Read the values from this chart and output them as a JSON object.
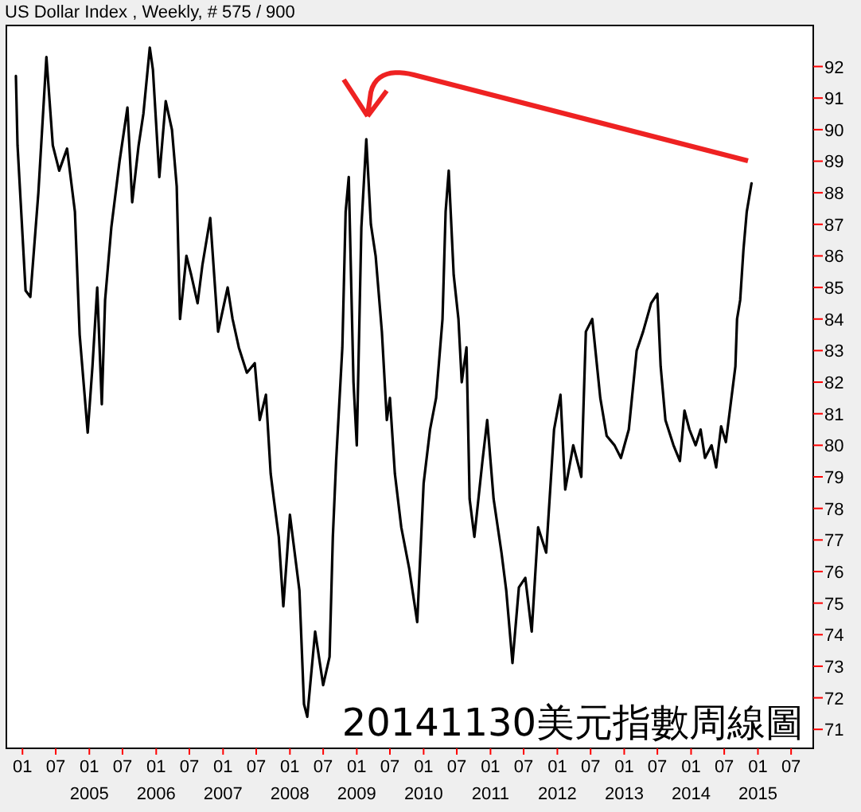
{
  "chart_data": {
    "type": "line",
    "title": "US Dollar Index , Weekly, # 575 / 900",
    "annotations": [
      "20141130美元指數周線圖"
    ],
    "color": "#000000",
    "x": [
      "2003-11-26",
      "2003-12-05",
      "2004-01-18",
      "2004-02-13",
      "2004-03-28",
      "2004-05-11",
      "2004-06-15",
      "2004-07-20",
      "2004-09-01",
      "2004-10-14",
      "2004-11-09",
      "2004-12-23",
      "2005-01-18",
      "2005-02-13",
      "2005-03-10",
      "2005-03-28",
      "2005-05-01",
      "2005-06-15",
      "2005-07-28",
      "2005-08-23",
      "2005-09-27",
      "2005-10-23",
      "2005-11-27",
      "2005-12-14",
      "2006-01-18",
      "2006-02-22",
      "2006-03-28",
      "2006-04-23",
      "2006-05-11",
      "2006-06-15",
      "2006-07-11",
      "2006-08-15",
      "2006-09-10",
      "2006-10-23",
      "2006-12-05",
      "2007-01-26",
      "2007-02-22",
      "2007-03-28",
      "2007-05-11",
      "2007-06-23",
      "2007-07-20",
      "2007-08-23",
      "2007-09-18",
      "2007-10-05",
      "2007-11-01",
      "2007-11-26",
      "2008-01-01",
      "2008-01-27",
      "2008-02-22",
      "2008-03-18",
      "2008-04-05",
      "2008-05-18",
      "2008-07-01",
      "2008-08-05",
      "2008-08-23",
      "2008-09-10",
      "2008-10-14",
      "2008-11-01",
      "2008-11-18",
      "2008-12-14",
      "2009-01-01",
      "2009-01-26",
      "2009-02-22",
      "2009-03-19",
      "2009-04-14",
      "2009-05-18",
      "2009-06-14",
      "2009-07-01",
      "2009-07-28",
      "2009-09-01",
      "2009-10-14",
      "2009-11-27",
      "2010-01-01",
      "2010-02-05",
      "2010-03-10",
      "2010-04-14",
      "2010-05-01",
      "2010-05-18",
      "2010-06-14",
      "2010-07-10",
      "2010-07-28",
      "2010-08-23",
      "2010-09-09",
      "2010-10-05",
      "2010-11-18",
      "2010-12-14",
      "2011-01-18",
      "2011-03-02",
      "2011-03-28",
      "2011-05-01",
      "2011-06-05",
      "2011-07-10",
      "2011-08-14",
      "2011-09-18",
      "2011-11-01",
      "2011-12-14",
      "2012-01-18",
      "2012-02-13",
      "2012-03-28",
      "2012-05-11",
      "2012-06-05",
      "2012-07-10",
      "2012-08-23",
      "2012-09-27",
      "2012-11-09",
      "2012-12-14",
      "2013-01-26",
      "2013-03-10",
      "2013-04-14",
      "2013-05-28",
      "2013-07-01",
      "2013-07-19",
      "2013-08-14",
      "2013-09-27",
      "2013-11-01",
      "2013-11-26",
      "2013-12-23",
      "2014-01-26",
      "2014-02-22",
      "2014-03-18",
      "2014-04-23",
      "2014-05-18",
      "2014-06-14",
      "2014-07-10",
      "2014-08-05",
      "2014-08-31",
      "2014-09-09",
      "2014-09-26",
      "2014-10-14",
      "2014-11-01",
      "2014-11-27"
    ],
    "values": [
      91.7,
      89.5,
      84.9,
      84.7,
      88.0,
      92.3,
      89.5,
      88.7,
      89.4,
      87.4,
      83.5,
      80.4,
      82.5,
      85.0,
      81.3,
      84.6,
      86.9,
      89.0,
      90.7,
      87.7,
      89.5,
      90.5,
      92.6,
      91.9,
      88.5,
      90.9,
      90.0,
      88.2,
      84.0,
      86.0,
      85.4,
      84.5,
      85.7,
      87.2,
      83.6,
      85.0,
      84.0,
      83.1,
      82.3,
      82.6,
      80.8,
      81.6,
      79.1,
      78.3,
      77.1,
      74.9,
      77.8,
      76.6,
      75.4,
      71.8,
      71.4,
      74.1,
      72.4,
      73.3,
      77.1,
      79.5,
      83.1,
      87.4,
      88.5,
      82.0,
      80.0,
      86.9,
      89.7,
      87.0,
      86.0,
      83.6,
      80.8,
      81.5,
      79.1,
      77.4,
      76.1,
      74.4,
      78.8,
      80.5,
      81.5,
      84.0,
      87.4,
      88.7,
      85.4,
      84.0,
      82.0,
      83.1,
      78.3,
      77.1,
      79.5,
      80.8,
      78.3,
      76.6,
      75.4,
      73.1,
      75.5,
      75.8,
      74.1,
      77.4,
      76.6,
      80.5,
      81.6,
      78.6,
      80.0,
      79.0,
      83.6,
      84.0,
      81.5,
      80.3,
      80.0,
      79.6,
      80.5,
      83.0,
      83.6,
      84.5,
      84.8,
      82.5,
      80.8,
      80.0,
      79.5,
      81.1,
      80.5,
      80.0,
      80.5,
      79.6,
      80.0,
      79.3,
      80.6,
      80.1,
      81.3,
      82.5,
      84.0,
      84.6,
      86.2,
      87.4,
      88.3
    ],
    "xlim": [
      "2003-10-05",
      "2015-10-30"
    ],
    "ylim": [
      70.4,
      93.3
    ],
    "xticks": [
      {
        "value": "2004-01",
        "label": "01"
      },
      {
        "value": "2004-07",
        "label": "07"
      },
      {
        "value": "2005-01",
        "label": "01\n2005"
      },
      {
        "value": "2005-07",
        "label": "07"
      },
      {
        "value": "2006-01",
        "label": "01\n2006"
      },
      {
        "value": "2006-07",
        "label": "07"
      },
      {
        "value": "2007-01",
        "label": "01\n2007"
      },
      {
        "value": "2007-07",
        "label": "07"
      },
      {
        "value": "2008-01",
        "label": "01\n2008"
      },
      {
        "value": "2008-07",
        "label": "07"
      },
      {
        "value": "2009-01",
        "label": "01\n2009"
      },
      {
        "value": "2009-07",
        "label": "07"
      },
      {
        "value": "2010-01",
        "label": "01\n2010"
      },
      {
        "value": "2010-07",
        "label": "07"
      },
      {
        "value": "2011-01",
        "label": "01\n2011"
      },
      {
        "value": "2011-07",
        "label": "07"
      },
      {
        "value": "2012-01",
        "label": "01\n2012"
      },
      {
        "value": "2012-07",
        "label": "07"
      },
      {
        "value": "2013-01",
        "label": "01\n2013"
      },
      {
        "value": "2013-07",
        "label": "07"
      },
      {
        "value": "2014-01",
        "label": "01\n2014"
      },
      {
        "value": "2014-07",
        "label": "07"
      },
      {
        "value": "2015-01",
        "label": "01\n2015"
      },
      {
        "value": "2015-07",
        "label": "07"
      }
    ],
    "yticks": [
      71,
      72,
      73,
      74,
      75,
      76,
      77,
      78,
      79,
      80,
      81,
      82,
      83,
      84,
      85,
      86,
      87,
      88,
      89,
      90,
      91,
      92
    ]
  }
}
